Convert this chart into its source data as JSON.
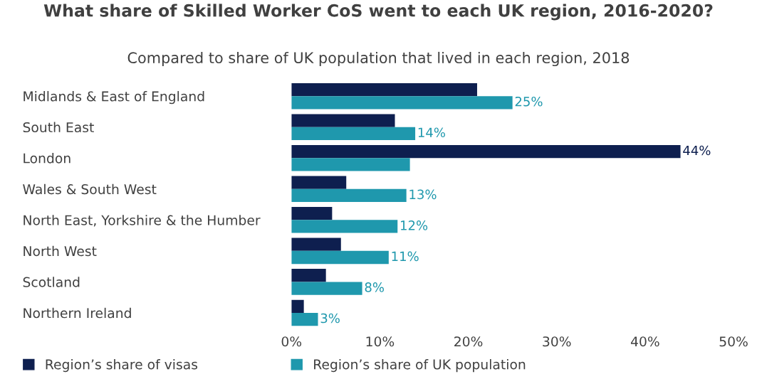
{
  "chart_data": {
    "type": "bar",
    "orientation": "horizontal",
    "title": "What share of Skilled Worker CoS went to each UK region, 2016-2020?",
    "subtitle": "Compared to share of UK population that lived in each region, 2018",
    "categories": [
      "Midlands & East of England",
      "South East",
      "London",
      "Wales & South West",
      "North East, Yorkshire & the Humber",
      "North West",
      "Scotland",
      "Northern Ireland"
    ],
    "series": [
      {
        "name": "Region’s share of visas",
        "color": "#0e1f4f",
        "values": [
          21,
          11.7,
          44,
          6.2,
          4.6,
          5.6,
          3.9,
          1.4
        ],
        "value_labels": [
          null,
          null,
          "44%",
          null,
          null,
          null,
          null,
          null
        ]
      },
      {
        "name": "Region’s share of UK population",
        "color": "#1f98ad",
        "values": [
          25,
          14,
          13.4,
          13,
          12,
          11,
          8,
          3
        ],
        "value_labels": [
          "25%",
          "14%",
          null,
          "13%",
          "12%",
          "11%",
          "8%",
          "3%"
        ]
      }
    ],
    "xlim": [
      0,
      50
    ],
    "xticks": [
      {
        "value": 0,
        "label": "0%"
      },
      {
        "value": 10,
        "label": "10%"
      },
      {
        "value": 20,
        "label": "20%"
      },
      {
        "value": 30,
        "label": "30%"
      },
      {
        "value": 40,
        "label": "40%"
      },
      {
        "value": 50,
        "label": "50%"
      }
    ],
    "grid": false,
    "legend": "bottom"
  }
}
